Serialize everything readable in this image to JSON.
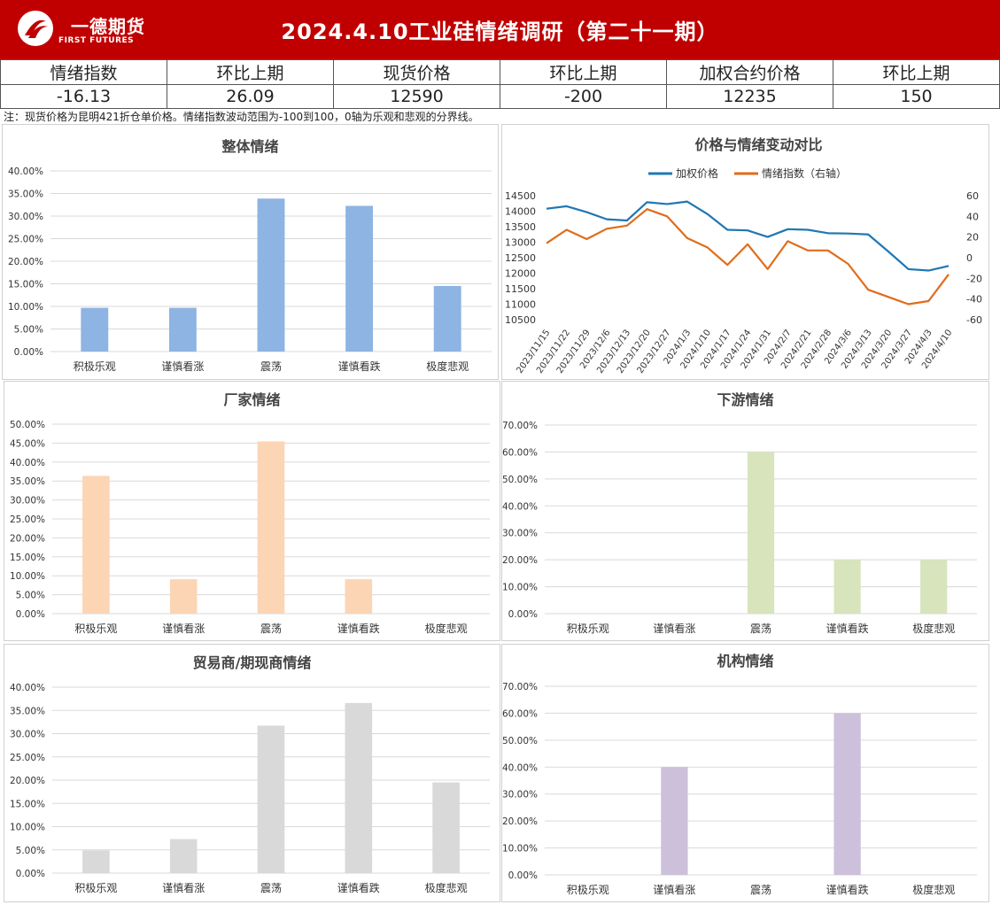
{
  "header": {
    "logo_cn": "一德期货",
    "logo_en": "FIRST FUTURES",
    "title": "2024.4.10工业硅情绪调研（第二十一期）"
  },
  "summary": {
    "headers": [
      "情绪指数",
      "环比上期",
      "现货价格",
      "环比上期",
      "加权合约价格",
      "环比上期"
    ],
    "values": [
      "-16.13",
      "26.09",
      "12590",
      "-200",
      "12235",
      "150"
    ]
  },
  "note": "注：现货价格为昆明421折仓单价格。情绪指数波动范围为-100到100，0轴为乐观和悲观的分界线。",
  "colors": {
    "header_bg": "#c00000",
    "overall": "#8db4e2",
    "factory": "#fcd5b5",
    "downstream": "#d8e4bc",
    "trader": "#d9d9d9",
    "institution": "#ccc0da",
    "price_line": "#1f77b4",
    "sentiment_line": "#e06c1a"
  },
  "chart_data": [
    {
      "id": "overall",
      "type": "bar",
      "title": "整体情绪",
      "categories": [
        "积极乐观",
        "谨慎看涨",
        "震荡",
        "谨慎看跌",
        "极度悲观"
      ],
      "values": [
        9.68,
        9.68,
        33.87,
        32.26,
        14.52
      ],
      "unit": "%",
      "ylim": [
        0,
        40
      ],
      "yticks": [
        0,
        5,
        10,
        15,
        20,
        25,
        30,
        35,
        40
      ],
      "grid": true
    },
    {
      "id": "combo",
      "type": "line",
      "title": "价格与情绪变动对比",
      "legend_position": "top",
      "x": [
        "2023/11/15",
        "2023/11/22",
        "2023/11/29",
        "2023/12/6",
        "2023/12/13",
        "2023/12/20",
        "2023/12/27",
        "2024/1/3",
        "2024/1/10",
        "2024/1/17",
        "2024/1/24",
        "2024/1/31",
        "2024/2/7",
        "2024/2/21",
        "2024/2/28",
        "2024/3/6",
        "2024/3/13",
        "2024/3/20",
        "2024/3/27",
        "2024/4/3",
        "2024/4/10"
      ],
      "series": [
        {
          "name": "加权价格",
          "axis": "left",
          "values": [
            14080,
            14160,
            13970,
            13740,
            13700,
            14290,
            14230,
            14310,
            13910,
            13400,
            13380,
            13170,
            13420,
            13400,
            13290,
            13280,
            13250,
            12700,
            12130,
            12085,
            12235
          ]
        },
        {
          "name": "情绪指数（右轴）",
          "axis": "right",
          "values": [
            14,
            27,
            18,
            28,
            31,
            47,
            40,
            19,
            10,
            -7,
            13,
            -11,
            16,
            7,
            7,
            -6,
            -31,
            -38,
            -45,
            -42,
            -16.13
          ]
        }
      ],
      "ylim_left": [
        10500,
        14500
      ],
      "yticks_left": [
        10500,
        11000,
        11500,
        12000,
        12500,
        13000,
        13500,
        14000,
        14500
      ],
      "ylim_right": [
        -60,
        60
      ],
      "yticks_right": [
        -60,
        -40,
        -20,
        0,
        20,
        40,
        60
      ],
      "grid": false
    },
    {
      "id": "factory",
      "type": "bar",
      "title": "厂家情绪",
      "categories": [
        "积极乐观",
        "谨慎看涨",
        "震荡",
        "谨慎看跌",
        "极度悲观"
      ],
      "values": [
        36.36,
        9.09,
        45.45,
        9.09,
        0
      ],
      "unit": "%",
      "ylim": [
        0,
        50
      ],
      "yticks": [
        0,
        5,
        10,
        15,
        20,
        25,
        30,
        35,
        40,
        45,
        50
      ],
      "grid": true
    },
    {
      "id": "downstream",
      "type": "bar",
      "title": "下游情绪",
      "categories": [
        "积极乐观",
        "谨慎看涨",
        "震荡",
        "谨慎看跌",
        "极度悲观"
      ],
      "values": [
        0,
        0,
        60,
        20,
        20
      ],
      "unit": "%",
      "ylim": [
        0,
        70
      ],
      "yticks": [
        0,
        10,
        20,
        30,
        40,
        50,
        60,
        70
      ],
      "grid": true
    },
    {
      "id": "trader",
      "type": "bar",
      "title": "贸易商/期现商情绪",
      "categories": [
        "积极乐观",
        "谨慎看涨",
        "震荡",
        "谨慎看跌",
        "极度悲观"
      ],
      "values": [
        4.88,
        7.32,
        31.71,
        36.59,
        19.51
      ],
      "unit": "%",
      "ylim": [
        0,
        40
      ],
      "yticks": [
        0,
        5,
        10,
        15,
        20,
        25,
        30,
        35,
        40
      ],
      "grid": true
    },
    {
      "id": "institution",
      "type": "bar",
      "title": "机构情绪",
      "categories": [
        "积极乐观",
        "谨慎看涨",
        "震荡",
        "谨慎看跌",
        "极度悲观"
      ],
      "values": [
        0,
        40,
        0,
        60,
        0
      ],
      "unit": "%",
      "ylim": [
        0,
        70
      ],
      "yticks": [
        0,
        10,
        20,
        30,
        40,
        50,
        60,
        70
      ],
      "grid": true
    }
  ]
}
